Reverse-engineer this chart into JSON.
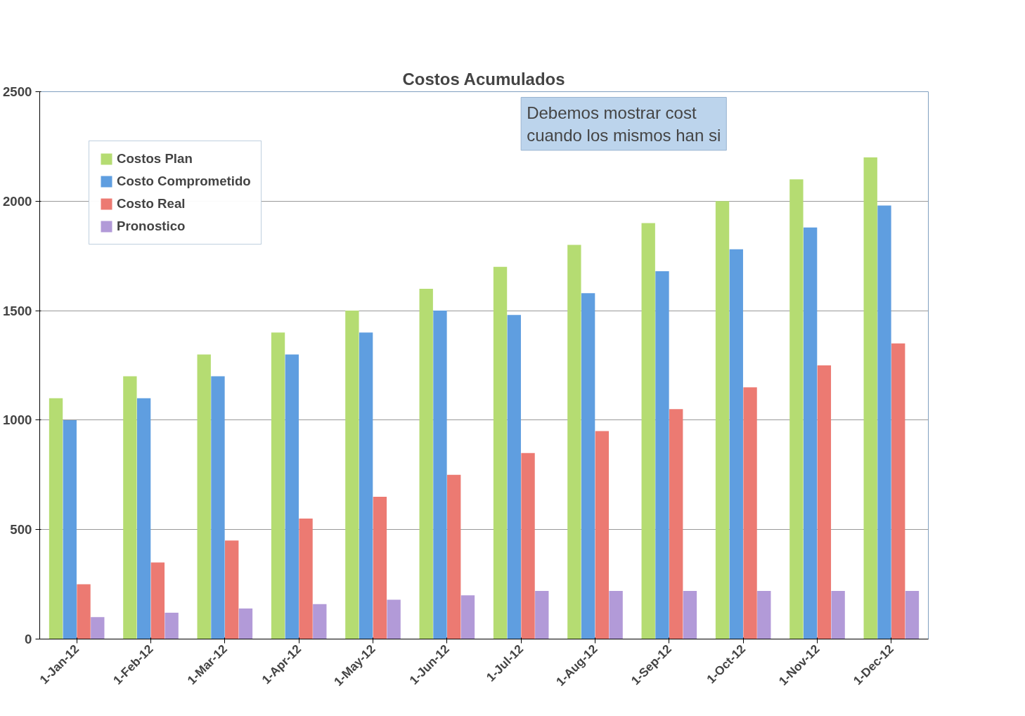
{
  "chart_data": {
    "type": "bar",
    "title": "Costos Acumulados",
    "annotations": [
      "Debemos mostrar cost\ncuando los mismos han si"
    ],
    "categories": [
      "1-Jan-12",
      "1-Feb-12",
      "1-Mar-12",
      "1-Apr-12",
      "1-May-12",
      "1-Jun-12",
      "1-Jul-12",
      "1-Aug-12",
      "1-Sep-12",
      "1-Oct-12",
      "1-Nov-12",
      "1-Dec-12"
    ],
    "series": [
      {
        "name": "Costos Plan",
        "color": "#b5dc72",
        "values": [
          1100,
          1200,
          1300,
          1400,
          1500,
          1600,
          1700,
          1800,
          1900,
          2000,
          2100,
          2200
        ]
      },
      {
        "name": "Costo Comprometido",
        "color": "#5f9ee0",
        "values": [
          1000,
          1100,
          1200,
          1300,
          1400,
          1500,
          1480,
          1580,
          1680,
          1780,
          1880,
          1980
        ]
      },
      {
        "name": "Costo Real",
        "color": "#ec7a72",
        "values": [
          250,
          350,
          450,
          550,
          650,
          750,
          850,
          950,
          1050,
          1150,
          1250,
          1350
        ]
      },
      {
        "name": "Pronostico",
        "color": "#b29ad8",
        "values": [
          100,
          120,
          140,
          160,
          180,
          200,
          220,
          220,
          220,
          220,
          220,
          220
        ]
      }
    ],
    "ylim": [
      0,
      2500
    ],
    "yticks": [
      0,
      500,
      1000,
      1500,
      2000,
      2500
    ],
    "grid": "y",
    "legend": "top left"
  }
}
